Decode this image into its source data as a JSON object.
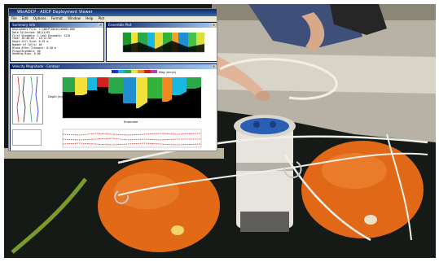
{
  "desktop": {
    "main_title": "WinADCP - ADCP Deployment Viewer",
    "menu": [
      "File",
      "Edit",
      "Options",
      "Format",
      "Window",
      "Help",
      "Plot"
    ],
    "log_title": "Summary Info",
    "log_lines": [
      "Deployment File: C:\\ADCP\\Data\\Lake01.000",
      "Data Collected: 06/11/03",
      "First Ensemble: 1   Last Ensemble: 2210",
      "Time: 10:40:03 - 14:12:55",
      "Depth Cell Size: 0.25 m",
      "Number of Cells: 40",
      "Blank After Transmit: 0.50 m",
      "Pings/Ensemble: 60",
      "Heading Bias: 0.00"
    ],
    "scan_title": "Ensemble Plot",
    "plot_title": "Velocity Magnitude - Contour",
    "plot_x_caption": "Ensemble",
    "plot_y_caption": "Depth (m)",
    "colorbar_caption": "Mag (mm/s)"
  },
  "colors": {
    "raft_orange": "#e56a17",
    "canister_blue": "#2a5fb5",
    "rope_white": "#f1efe8"
  }
}
